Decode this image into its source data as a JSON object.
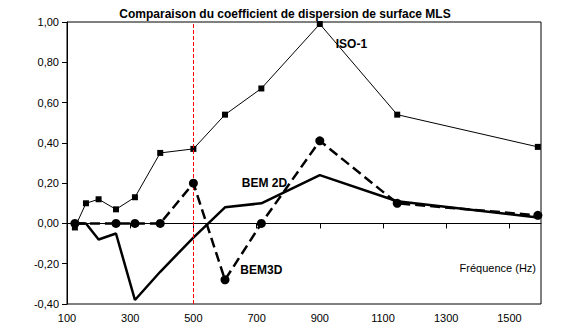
{
  "chart_data": {
    "type": "line",
    "title": "Comparaison du coefficient de dispersion de surface MLS",
    "x_label": "Fréquence (Hz)",
    "xlim": [
      100,
      1600
    ],
    "xticks": [
      100,
      300,
      500,
      700,
      900,
      1100,
      1300,
      1500
    ],
    "ylim": [
      -0.4,
      1.0
    ],
    "yticks": [
      {
        "value": -0.4,
        "label": "-0,40"
      },
      {
        "value": -0.2,
        "label": "-0,20"
      },
      {
        "value": 0,
        "label": "0,00"
      },
      {
        "value": 0.2,
        "label": "0,20"
      },
      {
        "value": 0.4,
        "label": "0,40"
      },
      {
        "value": 0.6,
        "label": "0,60"
      },
      {
        "value": 0.8,
        "label": "0,80"
      },
      {
        "value": 1.0,
        "label": "1,00"
      }
    ],
    "grid": false,
    "reference_line": {
      "x": 500,
      "color": "#ff0000",
      "line_style": "dashed"
    },
    "series": [
      {
        "name": "ISO-1",
        "color": "#000000",
        "marker": "square",
        "line_style": "solid",
        "x": [
          125,
          160,
          200,
          255,
          315,
          395,
          500,
          600,
          715,
          900,
          1145,
          1590
        ],
        "values": [
          -0.02,
          0.1,
          0.12,
          0.07,
          0.13,
          0.35,
          0.37,
          0.54,
          0.67,
          0.99,
          0.54,
          0.38
        ]
      },
      {
        "name": "BEM 2D",
        "color": "#000000",
        "marker": "none",
        "line_style": "solid",
        "x": [
          125,
          160,
          200,
          255,
          315,
          395,
          500,
          600,
          715,
          900,
          1145,
          1590
        ],
        "values": [
          0.0,
          0.0,
          -0.08,
          -0.05,
          -0.38,
          -0.24,
          -0.07,
          0.08,
          0.1,
          0.24,
          0.11,
          0.03
        ]
      },
      {
        "name": "BEM3D",
        "color": "#000000",
        "marker": "circle",
        "line_style": "dashed",
        "x": [
          125,
          255,
          315,
          395,
          500,
          600,
          715,
          900,
          1145,
          1590
        ],
        "values": [
          0.0,
          0.0,
          0.0,
          0.0,
          0.2,
          -0.28,
          0.0,
          0.41,
          0.1,
          0.04
        ]
      }
    ]
  }
}
